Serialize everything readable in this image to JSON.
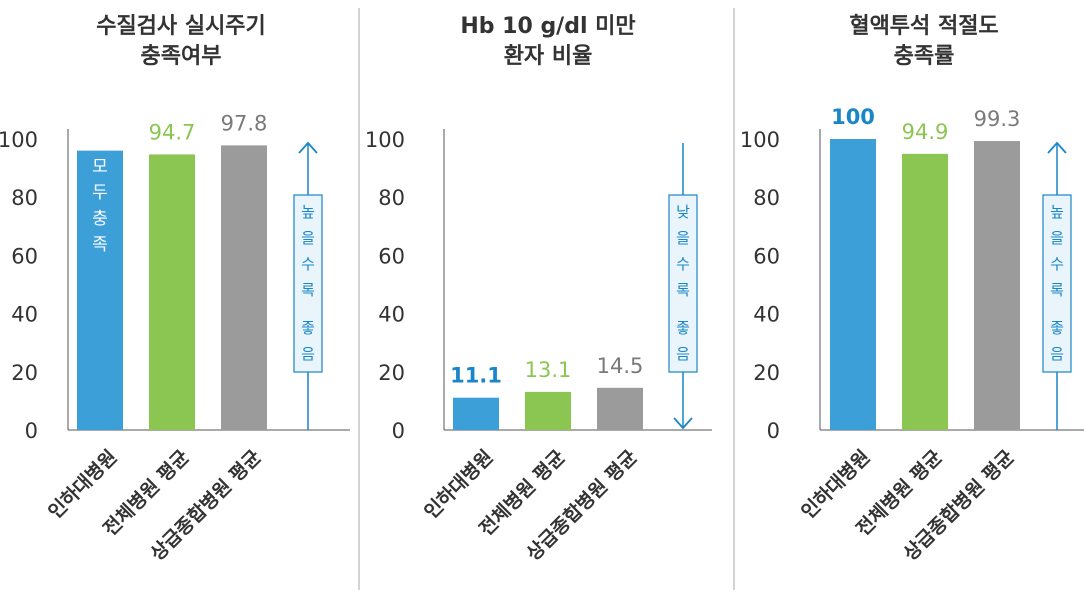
{
  "chart_data": [
    {
      "type": "bar",
      "title_lines": [
        "수질검사 실시주기",
        "충족여부"
      ],
      "categories": [
        "인하대병원",
        "전체병원 평균",
        "상급종합병원 평균"
      ],
      "values": [
        96,
        94.7,
        97.8
      ],
      "value_labels": [
        "",
        "94.7",
        "97.8"
      ],
      "bar_inner_label": [
        "모",
        "두",
        "충",
        "족"
      ],
      "yticks": [
        "0",
        "20",
        "40",
        "60",
        "80",
        "100"
      ],
      "ylim": [
        0,
        100
      ],
      "direction": "up",
      "direction_label": [
        "높",
        "을",
        "수",
        "록",
        "좋",
        "음"
      ]
    },
    {
      "type": "bar",
      "title_lines": [
        "Hb 10 g/dl 미만",
        "환자 비율"
      ],
      "categories": [
        "인하대병원",
        "전체병원 평균",
        "상급종합병원 평균"
      ],
      "values": [
        11.1,
        13.1,
        14.5
      ],
      "value_labels": [
        "11.1",
        "13.1",
        "14.5"
      ],
      "yticks": [
        "0",
        "20",
        "40",
        "60",
        "80",
        "100"
      ],
      "ylim": [
        0,
        100
      ],
      "direction": "down",
      "direction_label": [
        "낮",
        "을",
        "수",
        "록",
        "좋",
        "음"
      ]
    },
    {
      "type": "bar",
      "title_lines": [
        "혈액투석 적절도",
        "충족률"
      ],
      "categories": [
        "인하대병원",
        "전체병원 평균",
        "상급종합병원 평균"
      ],
      "values": [
        100,
        94.9,
        99.3
      ],
      "value_labels": [
        "100",
        "94.9",
        "99.3"
      ],
      "yticks": [
        "0",
        "20",
        "40",
        "60",
        "80",
        "100"
      ],
      "ylim": [
        0,
        100
      ],
      "direction": "up",
      "direction_label": [
        "높",
        "을",
        "수",
        "록",
        "좋",
        "음"
      ]
    }
  ],
  "colors": {
    "bars": [
      "#3d9fd8",
      "#8cc652",
      "#9b9b9b"
    ],
    "value_labels": [
      "#1a86c8",
      "#8cc652",
      "#7a7a7a"
    ],
    "arrow": "#1a86c8",
    "axis": "#555555",
    "divider": "#aaaaaa",
    "note_box_fill": "#e9f4fb"
  }
}
